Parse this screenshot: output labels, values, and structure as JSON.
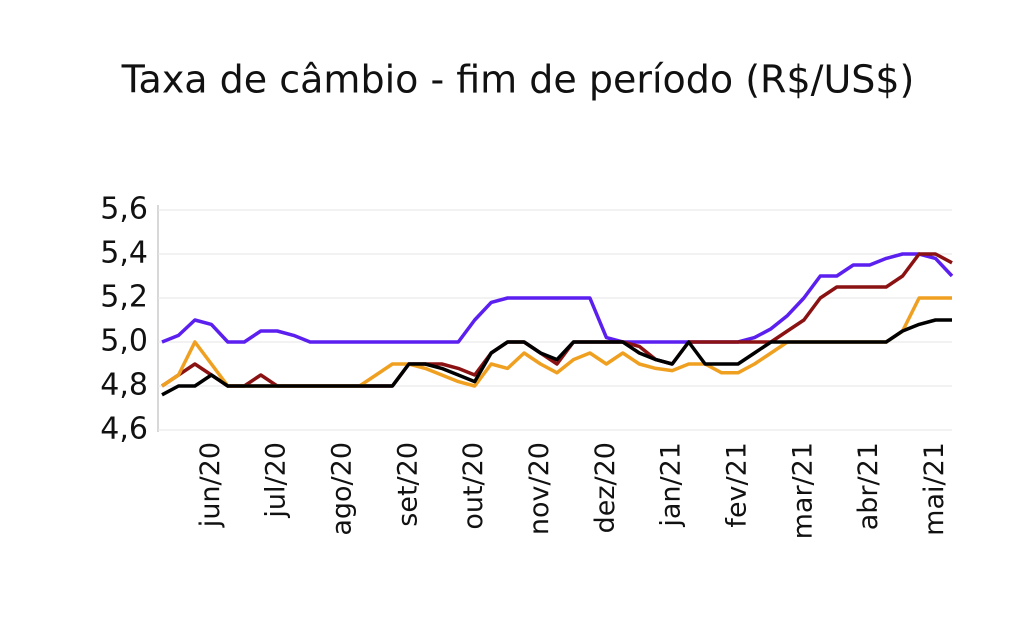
{
  "chart_data": {
    "type": "line",
    "title": "Taxa de câmbio - fim de período (R$/US$)",
    "categories": [
      null,
      null,
      null,
      "jun/20",
      null,
      null,
      null,
      "jul/20",
      null,
      null,
      null,
      "ago/20",
      null,
      null,
      null,
      "set/20",
      null,
      null,
      null,
      "out/20",
      null,
      null,
      null,
      "nov/20",
      null,
      null,
      null,
      "dez/20",
      null,
      null,
      null,
      "jan/21",
      null,
      null,
      null,
      "fev/21",
      null,
      null,
      null,
      "mar/21",
      null,
      null,
      null,
      "abr/21",
      null,
      null,
      null,
      "mai/21",
      null
    ],
    "series": [
      {
        "color": "#5b1ff0",
        "values": [
          5.0,
          5.03,
          5.1,
          5.08,
          5.0,
          5.0,
          5.05,
          5.05,
          5.03,
          5.0,
          5.0,
          5.0,
          5.0,
          5.0,
          5.0,
          5.0,
          5.0,
          5.0,
          5.0,
          5.1,
          5.18,
          5.2,
          5.2,
          5.2,
          5.2,
          5.2,
          5.2,
          5.02,
          5.0,
          5.0,
          5.0,
          5.0,
          5.0,
          5.0,
          5.0,
          5.0,
          5.02,
          5.06,
          5.12,
          5.2,
          5.3,
          5.3,
          5.35,
          5.35,
          5.38,
          5.4,
          5.4,
          5.38,
          5.3
        ]
      },
      {
        "color": "#8b1212",
        "values": [
          4.8,
          4.85,
          4.9,
          4.85,
          4.8,
          4.8,
          4.85,
          4.8,
          4.8,
          4.8,
          4.8,
          4.8,
          4.8,
          4.8,
          4.8,
          4.9,
          4.9,
          4.9,
          4.88,
          4.85,
          4.95,
          5.0,
          5.0,
          4.95,
          4.9,
          5.0,
          5.0,
          5.0,
          5.0,
          4.98,
          4.92,
          4.9,
          5.0,
          5.0,
          5.0,
          5.0,
          5.0,
          5.0,
          5.05,
          5.1,
          5.2,
          5.25,
          5.25,
          5.25,
          5.25,
          5.3,
          5.4,
          5.4,
          5.36
        ]
      },
      {
        "color": "#f0a020",
        "values": [
          4.8,
          4.85,
          5.0,
          4.9,
          4.8,
          4.8,
          4.8,
          4.8,
          4.8,
          4.8,
          4.8,
          4.8,
          4.8,
          4.85,
          4.9,
          4.9,
          4.88,
          4.85,
          4.82,
          4.8,
          4.9,
          4.88,
          4.95,
          4.9,
          4.86,
          4.92,
          4.95,
          4.9,
          4.95,
          4.9,
          4.88,
          4.87,
          4.9,
          4.9,
          4.86,
          4.86,
          4.9,
          4.95,
          5.0,
          5.0,
          5.0,
          5.0,
          5.0,
          5.0,
          5.0,
          5.05,
          5.2,
          5.2,
          5.2
        ]
      },
      {
        "color": "#000000",
        "values": [
          4.76,
          4.8,
          4.8,
          4.85,
          4.8,
          4.8,
          4.8,
          4.8,
          4.8,
          4.8,
          4.8,
          4.8,
          4.8,
          4.8,
          4.8,
          4.9,
          4.9,
          4.88,
          4.85,
          4.82,
          4.95,
          5.0,
          5.0,
          4.95,
          4.92,
          5.0,
          5.0,
          5.0,
          5.0,
          4.95,
          4.92,
          4.9,
          5.0,
          4.9,
          4.9,
          4.9,
          4.95,
          5.0,
          5.0,
          5.0,
          5.0,
          5.0,
          5.0,
          5.0,
          5.0,
          5.05,
          5.08,
          5.1,
          5.1
        ]
      }
    ],
    "ylim": [
      4.6,
      5.6
    ],
    "yticks": [
      {
        "value": 4.6,
        "label": "4,6"
      },
      {
        "value": 4.8,
        "label": "4,8"
      },
      {
        "value": 5.0,
        "label": "5,0"
      },
      {
        "value": 5.2,
        "label": "5,2"
      },
      {
        "value": 5.4,
        "label": "5,4"
      },
      {
        "value": 5.6,
        "label": "5,6"
      }
    ],
    "grid": true
  }
}
